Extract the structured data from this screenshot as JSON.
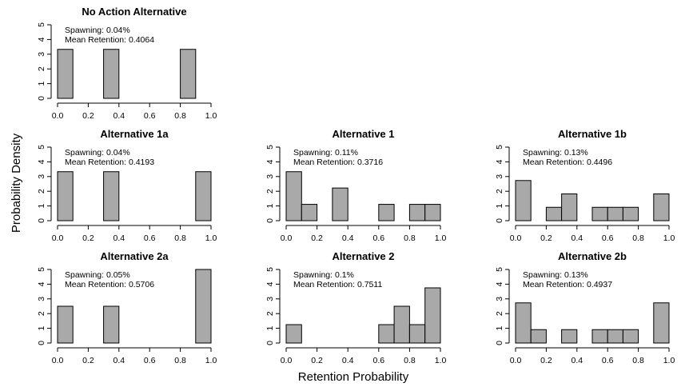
{
  "figure": {
    "xlabel": "Retention Probability",
    "ylabel": "Probability Density"
  },
  "chart_data": [
    {
      "type": "bar",
      "title": "No Action Alternative",
      "annotations": [
        "Spawning: 0.04%",
        "Mean Retention: 0.4064"
      ],
      "bins": [
        {
          "x0": 0.0,
          "x1": 0.1,
          "density": 3.33
        },
        {
          "x0": 0.3,
          "x1": 0.4,
          "density": 3.33
        },
        {
          "x0": 0.8,
          "x1": 0.9,
          "density": 3.33
        }
      ],
      "xticks": [
        "0.0",
        "0.2",
        "0.4",
        "0.6",
        "0.8",
        "1.0"
      ],
      "yticks": [
        "0",
        "1",
        "2",
        "3",
        "4",
        "5"
      ],
      "xlim": [
        0,
        1
      ],
      "ylim": [
        0,
        5
      ]
    },
    {
      "type": "bar",
      "title": "Alternative 1a",
      "annotations": [
        "Spawning: 0.04%",
        "Mean Retention: 0.4193"
      ],
      "bins": [
        {
          "x0": 0.0,
          "x1": 0.1,
          "density": 3.33
        },
        {
          "x0": 0.3,
          "x1": 0.4,
          "density": 3.33
        },
        {
          "x0": 0.9,
          "x1": 1.0,
          "density": 3.33
        }
      ],
      "xticks": [
        "0.0",
        "0.2",
        "0.4",
        "0.6",
        "0.8",
        "1.0"
      ],
      "yticks": [
        "0",
        "1",
        "2",
        "3",
        "4",
        "5"
      ],
      "xlim": [
        0,
        1
      ],
      "ylim": [
        0,
        5
      ]
    },
    {
      "type": "bar",
      "title": "Alternative 1",
      "annotations": [
        "Spawning: 0.11%",
        "Mean Retention: 0.3716"
      ],
      "bins": [
        {
          "x0": 0.0,
          "x1": 0.1,
          "density": 3.33
        },
        {
          "x0": 0.1,
          "x1": 0.2,
          "density": 1.11
        },
        {
          "x0": 0.3,
          "x1": 0.4,
          "density": 2.22
        },
        {
          "x0": 0.6,
          "x1": 0.7,
          "density": 1.11
        },
        {
          "x0": 0.8,
          "x1": 0.9,
          "density": 1.11
        },
        {
          "x0": 0.9,
          "x1": 1.0,
          "density": 1.11
        }
      ],
      "xticks": [
        "0.0",
        "0.2",
        "0.4",
        "0.6",
        "0.8",
        "1.0"
      ],
      "yticks": [
        "0",
        "1",
        "2",
        "3",
        "4",
        "5"
      ],
      "xlim": [
        0,
        1
      ],
      "ylim": [
        0,
        5
      ]
    },
    {
      "type": "bar",
      "title": "Alternative 1b",
      "annotations": [
        "Spawning: 0.13%",
        "Mean Retention: 0.4496"
      ],
      "bins": [
        {
          "x0": 0.0,
          "x1": 0.1,
          "density": 2.73
        },
        {
          "x0": 0.2,
          "x1": 0.3,
          "density": 0.91
        },
        {
          "x0": 0.3,
          "x1": 0.4,
          "density": 1.82
        },
        {
          "x0": 0.5,
          "x1": 0.6,
          "density": 0.91
        },
        {
          "x0": 0.6,
          "x1": 0.7,
          "density": 0.91
        },
        {
          "x0": 0.7,
          "x1": 0.8,
          "density": 0.91
        },
        {
          "x0": 0.9,
          "x1": 1.0,
          "density": 1.82
        }
      ],
      "xticks": [
        "0.0",
        "0.2",
        "0.4",
        "0.6",
        "0.8",
        "1.0"
      ],
      "yticks": [
        "0",
        "1",
        "2",
        "3",
        "4",
        "5"
      ],
      "xlim": [
        0,
        1
      ],
      "ylim": [
        0,
        5
      ]
    },
    {
      "type": "bar",
      "title": "Alternative 2a",
      "annotations": [
        "Spawning: 0.05%",
        "Mean Retention: 0.5706"
      ],
      "bins": [
        {
          "x0": 0.0,
          "x1": 0.1,
          "density": 2.5
        },
        {
          "x0": 0.3,
          "x1": 0.4,
          "density": 2.5
        },
        {
          "x0": 0.9,
          "x1": 1.0,
          "density": 5.0
        }
      ],
      "xticks": [
        "0.0",
        "0.2",
        "0.4",
        "0.6",
        "0.8",
        "1.0"
      ],
      "yticks": [
        "0",
        "1",
        "2",
        "3",
        "4",
        "5"
      ],
      "xlim": [
        0,
        1
      ],
      "ylim": [
        0,
        5
      ]
    },
    {
      "type": "bar",
      "title": "Alternative 2",
      "annotations": [
        "Spawning: 0.1%",
        "Mean Retention: 0.7511"
      ],
      "bins": [
        {
          "x0": 0.0,
          "x1": 0.1,
          "density": 1.25
        },
        {
          "x0": 0.6,
          "x1": 0.7,
          "density": 1.25
        },
        {
          "x0": 0.7,
          "x1": 0.8,
          "density": 2.5
        },
        {
          "x0": 0.8,
          "x1": 0.9,
          "density": 1.25
        },
        {
          "x0": 0.9,
          "x1": 1.0,
          "density": 3.75
        }
      ],
      "xticks": [
        "0.0",
        "0.2",
        "0.4",
        "0.6",
        "0.8",
        "1.0"
      ],
      "yticks": [
        "0",
        "1",
        "2",
        "3",
        "4",
        "5"
      ],
      "xlim": [
        0,
        1
      ],
      "ylim": [
        0,
        5
      ]
    },
    {
      "type": "bar",
      "title": "Alternative 2b",
      "annotations": [
        "Spawning: 0.13%",
        "Mean Retention: 0.4937"
      ],
      "bins": [
        {
          "x0": 0.0,
          "x1": 0.1,
          "density": 2.73
        },
        {
          "x0": 0.1,
          "x1": 0.2,
          "density": 0.91
        },
        {
          "x0": 0.3,
          "x1": 0.4,
          "density": 0.91
        },
        {
          "x0": 0.5,
          "x1": 0.6,
          "density": 0.91
        },
        {
          "x0": 0.6,
          "x1": 0.7,
          "density": 0.91
        },
        {
          "x0": 0.7,
          "x1": 0.8,
          "density": 0.91
        },
        {
          "x0": 0.9,
          "x1": 1.0,
          "density": 2.73
        }
      ],
      "xticks": [
        "0.0",
        "0.2",
        "0.4",
        "0.6",
        "0.8",
        "1.0"
      ],
      "yticks": [
        "0",
        "1",
        "2",
        "3",
        "4",
        "5"
      ],
      "xlim": [
        0,
        1
      ],
      "ylim": [
        0,
        5
      ]
    }
  ],
  "colors": {
    "bar_fill": "#a9a9a9",
    "bar_stroke": "#000000",
    "axis": "#000000",
    "background": "#ffffff"
  }
}
